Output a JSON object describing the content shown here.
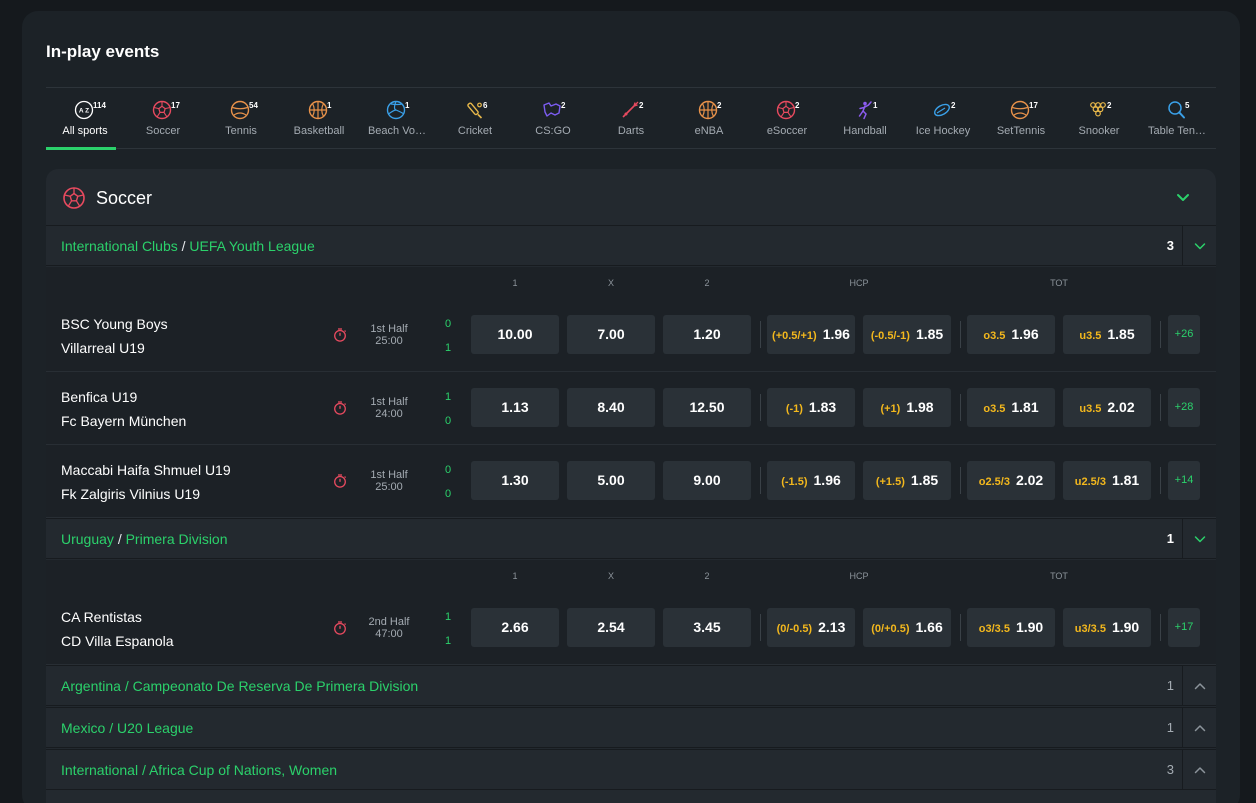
{
  "page": {
    "title": "In-play events"
  },
  "sports": [
    {
      "key": "all",
      "label": "All sports",
      "count": "114",
      "icon": "all-sports-icon",
      "active": true
    },
    {
      "key": "soccer",
      "label": "Soccer",
      "count": "17",
      "icon": "soccer-ball-icon"
    },
    {
      "key": "tennis",
      "label": "Tennis",
      "count": "54",
      "icon": "tennis-ball-icon"
    },
    {
      "key": "basketball",
      "label": "Basketball",
      "count": "1",
      "icon": "basketball-icon"
    },
    {
      "key": "beachvolley",
      "label": "Beach Vo…",
      "count": "1",
      "icon": "volleyball-icon"
    },
    {
      "key": "cricket",
      "label": "Cricket",
      "count": "6",
      "icon": "cricket-bat-icon"
    },
    {
      "key": "csgo",
      "label": "CS:GO",
      "count": "2",
      "icon": "csgo-icon"
    },
    {
      "key": "darts",
      "label": "Darts",
      "count": "2",
      "icon": "dart-icon"
    },
    {
      "key": "enba",
      "label": "eNBA",
      "count": "2",
      "icon": "basketball-icon"
    },
    {
      "key": "esoccer",
      "label": "eSoccer",
      "count": "2",
      "icon": "soccer-ball-icon"
    },
    {
      "key": "handball",
      "label": "Handball",
      "count": "1",
      "icon": "handball-icon"
    },
    {
      "key": "icehockey",
      "label": "Ice Hockey",
      "count": "2",
      "icon": "ice-hockey-puck-icon"
    },
    {
      "key": "settennis",
      "label": "SetTennis",
      "count": "17",
      "icon": "tennis-ball-icon"
    },
    {
      "key": "snooker",
      "label": "Snooker",
      "count": "2",
      "icon": "snooker-balls-icon"
    },
    {
      "key": "tabletennis",
      "label": "Table Ten…",
      "count": "5",
      "icon": "table-tennis-icon"
    }
  ],
  "section": {
    "title": "Soccer",
    "icon": "soccer-ball-icon",
    "toggle_icon": "chevron-down-icon"
  },
  "colors": {
    "accent": "#2bd16b",
    "handicap": "#f3b81d",
    "clock": "#e84a5f"
  },
  "column_headers": {
    "c1": "1",
    "cx": "X",
    "c2": "2",
    "hcp": "HCP",
    "tot": "TOT"
  },
  "leagues": [
    {
      "country": "International Clubs",
      "separator": "/",
      "name": "UEFA Youth League",
      "count": "3",
      "expanded": true,
      "matches": [
        {
          "home": "BSC Young Boys",
          "away": "Villarreal U19",
          "period": "1st Half",
          "time": "25:00",
          "score_home": "0",
          "score_away": "1",
          "odds": {
            "one": "10.00",
            "x": "7.00",
            "two": "1.20",
            "hcp1_line": "(+0.5/+1)",
            "hcp1": "1.96",
            "hcp2_line": "(-0.5/-1)",
            "hcp2": "1.85",
            "over_line": "o3.5",
            "over": "1.96",
            "under_line": "u3.5",
            "under": "1.85"
          },
          "more": "+26"
        },
        {
          "home": "Benfica U19",
          "away": "Fc Bayern München",
          "period": "1st Half",
          "time": "24:00",
          "score_home": "1",
          "score_away": "0",
          "odds": {
            "one": "1.13",
            "x": "8.40",
            "two": "12.50",
            "hcp1_line": "(-1)",
            "hcp1": "1.83",
            "hcp2_line": "(+1)",
            "hcp2": "1.98",
            "over_line": "o3.5",
            "over": "1.81",
            "under_line": "u3.5",
            "under": "2.02"
          },
          "more": "+28"
        },
        {
          "home": "Maccabi Haifa Shmuel U19",
          "away": "Fk Zalgiris Vilnius U19",
          "period": "1st Half",
          "time": "25:00",
          "score_home": "0",
          "score_away": "0",
          "odds": {
            "one": "1.30",
            "x": "5.00",
            "two": "9.00",
            "hcp1_line": "(-1.5)",
            "hcp1": "1.96",
            "hcp2_line": "(+1.5)",
            "hcp2": "1.85",
            "over_line": "o2.5/3",
            "over": "2.02",
            "under_line": "u2.5/3",
            "under": "1.81"
          },
          "more": "+14"
        }
      ]
    },
    {
      "country": "Uruguay",
      "separator": "/",
      "name": "Primera Division",
      "count": "1",
      "expanded": true,
      "matches": [
        {
          "home": "CA Rentistas",
          "away": "CD Villa Espanola",
          "period": "2nd Half",
          "time": "47:00",
          "score_home": "1",
          "score_away": "1",
          "odds": {
            "one": "2.66",
            "x": "2.54",
            "two": "3.45",
            "hcp1_line": "(0/-0.5)",
            "hcp1": "2.13",
            "hcp2_line": "(0/+0.5)",
            "hcp2": "1.66",
            "over_line": "o3/3.5",
            "over": "1.90",
            "under_line": "u3/3.5",
            "under": "1.90"
          },
          "more": "+17"
        }
      ]
    },
    {
      "country": "Argentina",
      "separator": "/",
      "name": "Campeonato De Reserva De Primera Division",
      "count": "1",
      "expanded": false
    },
    {
      "country": "Mexico",
      "separator": "/",
      "name": "U20 League",
      "count": "1",
      "expanded": false
    },
    {
      "country": "International",
      "separator": "/",
      "name": "Africa Cup of Nations, Women",
      "count": "3",
      "expanded": false
    }
  ]
}
